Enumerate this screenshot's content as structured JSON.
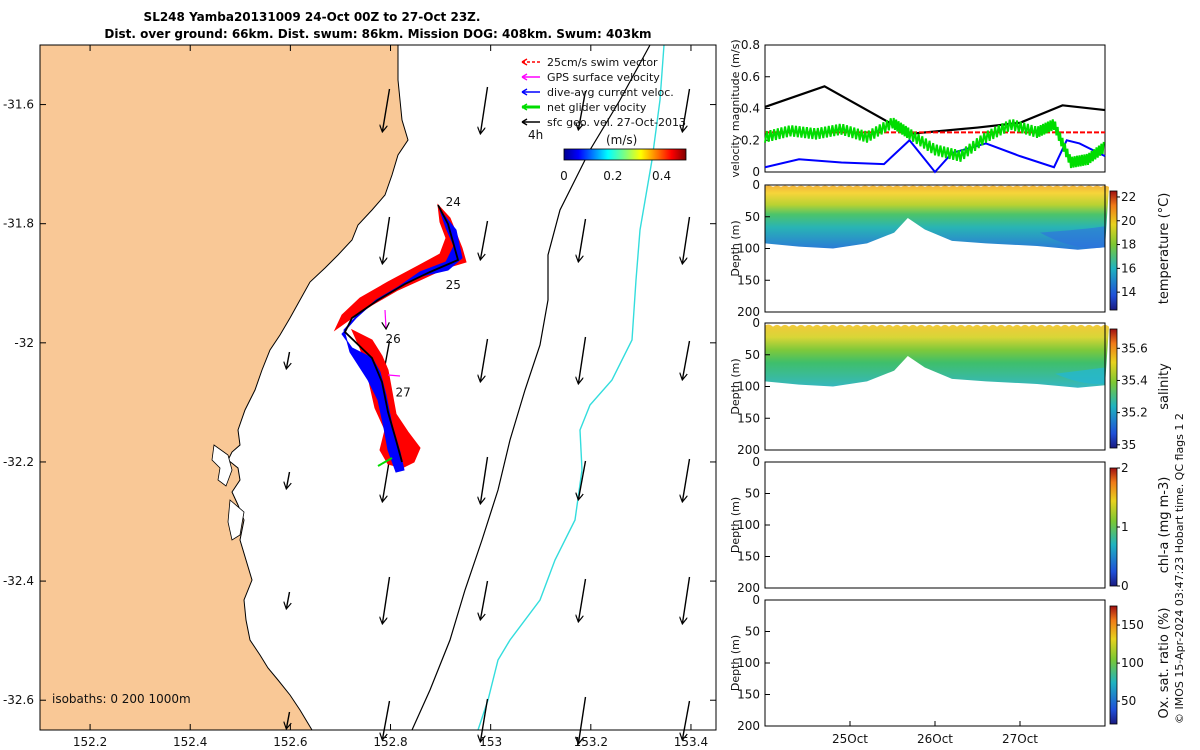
{
  "title": {
    "line1": "SL248 Yamba20131009 24-Oct 00Z to 27-Oct 23Z.",
    "line2": "Dist. over ground: 66km. Dist. swum: 86km. Mission DOG: 408km. Swum: 403km"
  },
  "colors": {
    "land": "#f9c896",
    "swim": "#ff0000",
    "gps": "#ff00ff",
    "diveavg": "#0000ff",
    "net": "#00dd00",
    "geo": "#000000",
    "isobath200": "#000000",
    "isobath1000": "#33dddd"
  },
  "map": {
    "xlim": [
      152.1,
      153.45
    ],
    "ylim": [
      -32.65,
      -31.5
    ],
    "xticks": [
      152.2,
      152.4,
      152.6,
      152.8,
      153,
      153.2,
      153.4
    ],
    "xtick_labels": [
      "152.2",
      "152.4",
      "152.6",
      "152.8",
      "153",
      "153.2",
      "153.4"
    ],
    "yticks": [
      -31.6,
      -31.8,
      -32,
      -32.2,
      -32.4,
      -32.6
    ],
    "ytick_labels": [
      "-31.6",
      "-31.8",
      "-32",
      "-32.2",
      "-32.4",
      "-32.6"
    ],
    "day_labels": [
      {
        "text": "24",
        "lon": 152.91,
        "lat": -31.77
      },
      {
        "text": "25",
        "lon": 152.91,
        "lat": -31.91
      },
      {
        "text": "26",
        "lon": 152.79,
        "lat": -32.0
      },
      {
        "text": "27",
        "lon": 152.81,
        "lat": -32.09
      }
    ],
    "isobath_label": "isobaths: 0   200   1000m",
    "scale_label": "4h",
    "colorbar_unit": "(m/s)",
    "colorbar_ticks": [
      "0",
      "0.2",
      "0.4"
    ],
    "colorbar_range": [
      0,
      0.5
    ],
    "legend": [
      {
        "label": "25cm/s swim vector",
        "key": "swim"
      },
      {
        "label": "GPS surface velocity",
        "key": "gps"
      },
      {
        "label": "dive-avg current veloc.",
        "key": "diveavg"
      },
      {
        "label": "net glider velocity",
        "key": "net"
      },
      {
        "label": "sfc geo. vel. 27-Oct-2013",
        "key": "geo"
      }
    ]
  },
  "chart_data": [
    {
      "type": "line",
      "ylabel": "velocity magnitude (m/s)",
      "ylim": [
        0,
        0.8
      ],
      "yticks": [
        "0",
        "0.2",
        "0.4",
        "0.6",
        "0.8"
      ],
      "xlim": [
        24.0,
        28.0
      ],
      "series": [
        {
          "key": "geo",
          "x": [
            24.0,
            24.7,
            25.7,
            26.5,
            27.0,
            27.5,
            28.0
          ],
          "y": [
            0.41,
            0.54,
            0.24,
            0.28,
            0.31,
            0.42,
            0.39
          ]
        },
        {
          "key": "swim",
          "x": [
            24.0,
            28.0
          ],
          "y": [
            0.25,
            0.25
          ]
        },
        {
          "key": "diveavg",
          "x": [
            24.0,
            24.4,
            24.9,
            25.4,
            25.7,
            26.0,
            26.2,
            26.6,
            27.0,
            27.4,
            27.55,
            27.7,
            28.0
          ],
          "y": [
            0.03,
            0.08,
            0.06,
            0.05,
            0.2,
            0.0,
            0.12,
            0.18,
            0.1,
            0.03,
            0.2,
            0.18,
            0.1
          ]
        },
        {
          "key": "net",
          "x": [
            24.0,
            24.3,
            24.6,
            24.9,
            25.2,
            25.5,
            25.7,
            26.0,
            26.3,
            26.6,
            26.9,
            27.2,
            27.4,
            27.6,
            27.8,
            28.0
          ],
          "y": [
            0.22,
            0.26,
            0.24,
            0.27,
            0.22,
            0.31,
            0.24,
            0.14,
            0.1,
            0.22,
            0.3,
            0.25,
            0.3,
            0.06,
            0.08,
            0.16
          ]
        }
      ]
    },
    {
      "type": "heatmap",
      "cblabel": "temperature (°C)",
      "cbticks": [
        "14",
        "16",
        "18",
        "20",
        "22"
      ],
      "clim": [
        12.5,
        22.5
      ],
      "ylabel": "Depth (m)",
      "ylim": [
        0,
        200
      ],
      "yticks": [
        "0",
        "50",
        "100",
        "150",
        "200"
      ]
    },
    {
      "type": "heatmap",
      "cblabel": "salinity",
      "cbticks": [
        "35",
        "35.2",
        "35.4",
        "35.6"
      ],
      "clim": [
        34.98,
        35.72
      ],
      "ylabel": "Depth (m)",
      "ylim": [
        0,
        200
      ],
      "yticks": [
        "0",
        "50",
        "100",
        "150",
        "200"
      ]
    },
    {
      "type": "heatmap",
      "cblabel": "chl-a (mg m-3)",
      "cbticks": [
        "0",
        "1",
        "2"
      ],
      "clim": [
        0,
        2
      ],
      "ylabel": "Depth (m)",
      "ylim": [
        0,
        200
      ],
      "yticks": [
        "0",
        "50",
        "100",
        "150",
        "200"
      ]
    },
    {
      "type": "heatmap",
      "cblabel": "Ox. sat. ratio (%)",
      "cbticks": [
        "50",
        "100",
        "150"
      ],
      "clim": [
        20,
        175
      ],
      "ylabel": "Depth (m)",
      "ylim": [
        0,
        200
      ],
      "yticks": [
        "0",
        "50",
        "100",
        "150",
        "200"
      ],
      "xticks": [
        "25Oct",
        "26Oct",
        "27Oct"
      ],
      "xtick_vals": [
        25,
        26,
        27
      ]
    }
  ],
  "side_note": "© IMOS 15-Apr-2024 03:47:23 Hobart time. QC flags 1  2"
}
